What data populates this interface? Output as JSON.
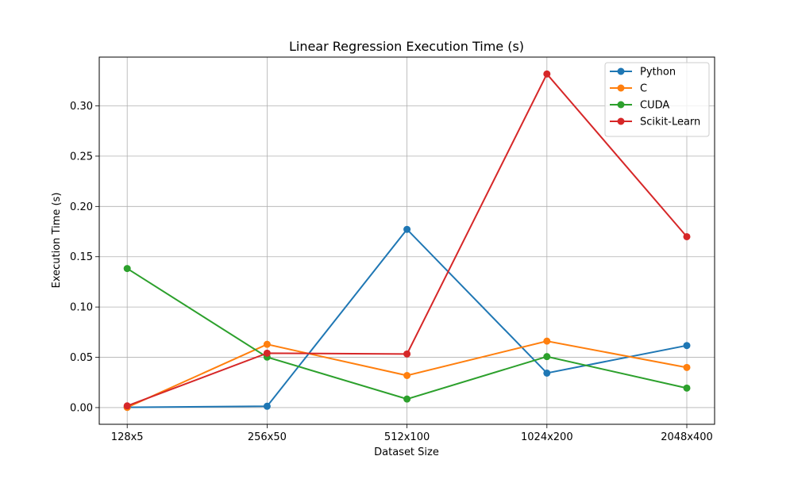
{
  "chart_data": {
    "type": "line",
    "title": "Linear Regression Execution Time (s)",
    "xlabel": "Dataset Size",
    "ylabel": "Execution Time (s)",
    "categories": [
      "128x5",
      "256x50",
      "512x100",
      "1024x200",
      "2048x400"
    ],
    "ylim": [
      -0.0166,
      0.3485
    ],
    "yticks": [
      0.0,
      0.05,
      0.1,
      0.15,
      0.2,
      0.25,
      0.3
    ],
    "ytick_labels": [
      "0.00",
      "0.05",
      "0.10",
      "0.15",
      "0.20",
      "0.25",
      "0.30"
    ],
    "grid": true,
    "legend_position": "top-right",
    "marker": "circle",
    "series": [
      {
        "name": "Python",
        "color": "#1f77b4",
        "values": [
          0.0003,
          0.0013,
          0.1772,
          0.0343,
          0.0617
        ]
      },
      {
        "name": "C",
        "color": "#ff7f0e",
        "values": [
          0.0002,
          0.0629,
          0.0319,
          0.0661,
          0.0399
        ]
      },
      {
        "name": "CUDA",
        "color": "#2ca02c",
        "values": [
          0.1383,
          0.0502,
          0.0085,
          0.0507,
          0.0194
        ]
      },
      {
        "name": "Scikit-Learn",
        "color": "#d62728",
        "values": [
          0.0017,
          0.0541,
          0.0533,
          0.3317,
          0.1699
        ]
      }
    ]
  }
}
